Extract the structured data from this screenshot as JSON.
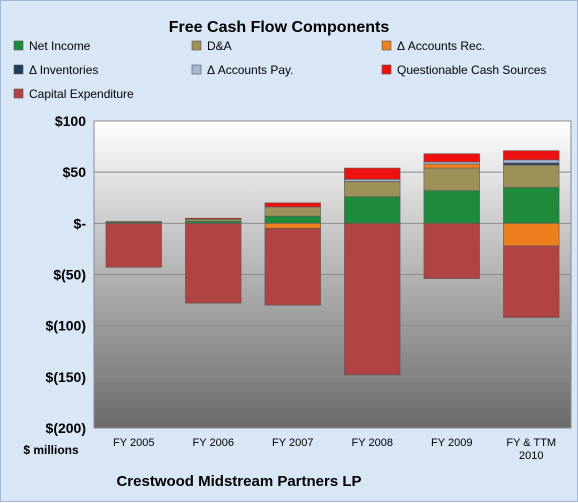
{
  "chart_data": {
    "type": "bar",
    "stacked": true,
    "title": "Free Cash Flow Components",
    "ylabel": "$ millions",
    "footer": "Crestwood Midstream Partners LP",
    "categories": [
      "FY 2005",
      "FY 2006",
      "FY 2007",
      "FY 2008",
      "FY 2009",
      "FY & TTM 2010"
    ],
    "yticks": [
      "$100",
      "$50",
      "$-",
      "$(50)",
      "$(100)",
      "$(150)",
      "$(200)"
    ],
    "ylim": [
      -200,
      100
    ],
    "grid": true,
    "legend_position": "top",
    "series": [
      {
        "name": "Net Income",
        "color": "#1e8a3c",
        "values": [
          1,
          2,
          7,
          26,
          32,
          35
        ]
      },
      {
        "name": "D&A",
        "color": "#9c9158",
        "values": [
          1,
          2,
          9,
          15,
          22,
          22
        ]
      },
      {
        "name": "Δ Accounts Rec.",
        "color": "#ee7f1e",
        "values": [
          0,
          0,
          -5,
          0,
          4,
          -22
        ]
      },
      {
        "name": "Δ Inventories",
        "color": "#1f3d5c",
        "values": [
          0,
          0,
          0,
          0,
          0,
          2
        ]
      },
      {
        "name": "Δ Accounts Pay.",
        "color": "#a7b8d6",
        "values": [
          0,
          0,
          0,
          2,
          2,
          3
        ]
      },
      {
        "name": "Questionable Cash Sources",
        "color": "#ee1111",
        "values": [
          0,
          1,
          4,
          11,
          8,
          9
        ]
      },
      {
        "name": "Capital Expenditure",
        "color": "#b04343",
        "values": [
          -43,
          -78,
          -75,
          -148,
          -54,
          -70
        ]
      }
    ]
  }
}
